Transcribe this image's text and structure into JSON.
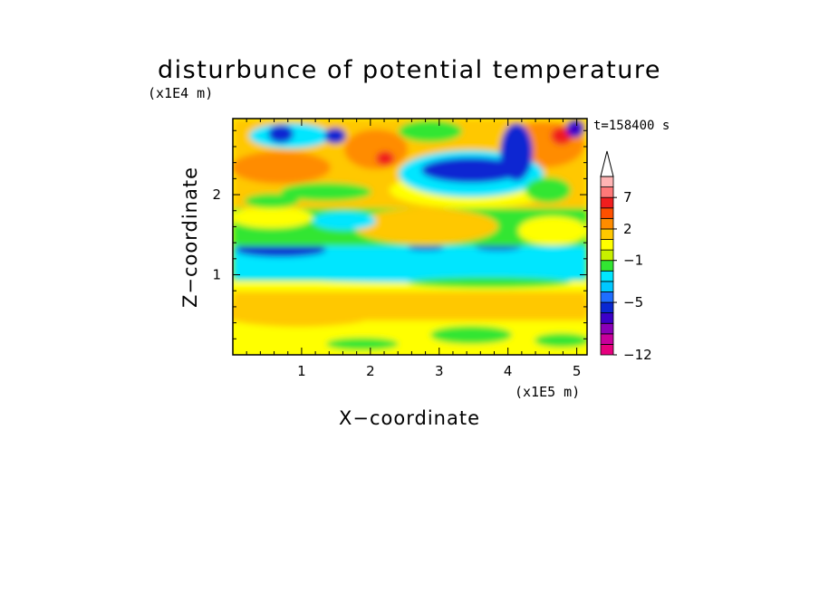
{
  "chart_data": {
    "type": "heatmap",
    "title": "disturbunce of potential temperature",
    "time_label": "t=158400 s",
    "xlabel": "X−coordinate",
    "ylabel": "Z−coordinate",
    "x_unit": "(x1E5 m)",
    "y_unit": "(x1E4 m)",
    "xlim": [
      0,
      5.15
    ],
    "ylim": [
      0,
      2.95
    ],
    "x_ticks": [
      "1",
      "2",
      "3",
      "4",
      "5"
    ],
    "x_tick_values": [
      1,
      2,
      3,
      4,
      5
    ],
    "y_ticks": [
      "1",
      "2"
    ],
    "y_tick_values": [
      1,
      2
    ],
    "colorbar": {
      "labels": [
        "7",
        "2",
        "−1",
        "−5",
        "−12"
      ],
      "label_values": [
        7,
        2,
        -1,
        -5,
        -12
      ],
      "extend": "max",
      "colors": [
        "#e6007e",
        "#c8009c",
        "#8a00b8",
        "#3c00c8",
        "#0a28d2",
        "#1e6eff",
        "#00c8ff",
        "#00e6ff",
        "#32e632",
        "#c8f000",
        "#ffff00",
        "#ffc800",
        "#ff8c00",
        "#ff5000",
        "#f01e1e",
        "#ff7878",
        "#ffb4b4"
      ]
    }
  }
}
